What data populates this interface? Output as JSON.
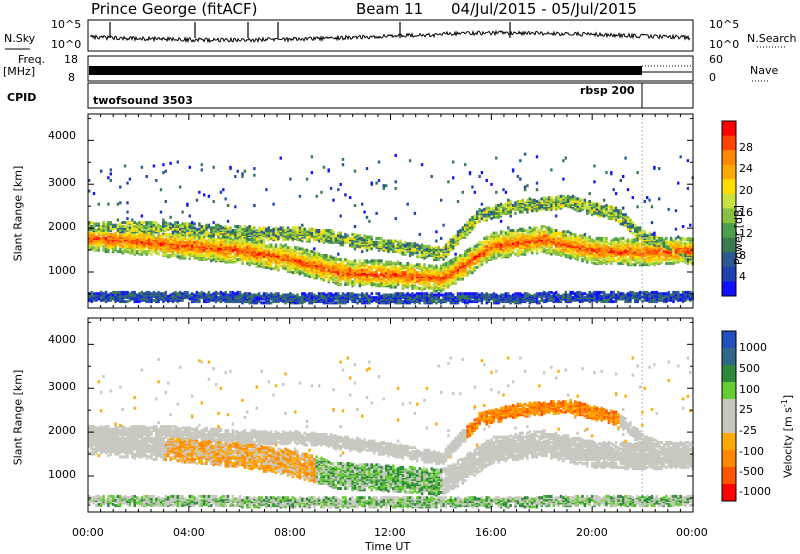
{
  "header": {
    "station": "Prince George (fitACF)",
    "beam": "Beam 11",
    "date_range": "04/Jul/2015 - 05/Jul/2015"
  },
  "noise_panel": {
    "left_label": "N.Sky",
    "right_label": "N.Search",
    "ticks_left": [
      "10^5",
      "10^0"
    ],
    "ticks_right": [
      "10^5",
      "10^0"
    ]
  },
  "freq_panel": {
    "left_label_1": "Freq.",
    "left_label_2": "[MHz]",
    "ticks_left": [
      "18",
      "8"
    ],
    "ticks_right": [
      "60",
      "0"
    ],
    "right_label": "Nave"
  },
  "cpid_panel": {
    "label": "CPID",
    "segments": [
      {
        "name": "twofsound 3503",
        "start_hour": 0,
        "end_hour": 21.95
      },
      {
        "name": "rbsp 200",
        "start_hour": 21.95,
        "end_hour": 24
      }
    ]
  },
  "power_colorbar": {
    "title": "Power [dB]",
    "ticks": [
      "28",
      "24",
      "20",
      "16",
      "12",
      "8",
      "4"
    ],
    "colors": [
      "#ff0000",
      "#ff4400",
      "#ff8800",
      "#ffaa00",
      "#ffdd00",
      "#c8e040",
      "#88c040",
      "#4ca04c",
      "#3a7a50",
      "#2a5a90",
      "#2040b0",
      "#1010ff"
    ]
  },
  "velocity_colorbar": {
    "title": "Velocity [m s",
    "title_sup": "-1",
    "title_end": "]",
    "ticks": [
      "1000",
      "500",
      "100",
      "25",
      "-25",
      "-100",
      "-500",
      "-1000"
    ],
    "colors": [
      "#2050c0",
      "#306888",
      "#2d8a3a",
      "#66cc33",
      "#c8c8c0",
      "#c8c8c0",
      "#ffaa00",
      "#ff8800",
      "#ff5500",
      "#ff0000"
    ]
  },
  "chart_data": {
    "type": "heatmap",
    "panels": [
      {
        "name": "power",
        "ylabel": "Slant Range [km]",
        "yticks": [
          "4000",
          "3000",
          "2000",
          "1000"
        ],
        "ylim": [
          180,
          4600
        ]
      },
      {
        "name": "velocity",
        "ylabel": "Slant Range [km]",
        "yticks": [
          "4000",
          "3000",
          "2000",
          "1000"
        ],
        "ylim": [
          180,
          4600
        ]
      }
    ],
    "xlabel": "Time UT",
    "xticks": [
      "00:00",
      "04:00",
      "08:00",
      "12:00",
      "16:00",
      "20:00",
      "00:00"
    ],
    "xlim_hours": [
      0,
      24
    ],
    "bands": [
      {
        "name": "main-echo-band",
        "points": [
          [
            0,
            1800
          ],
          [
            3,
            1650
          ],
          [
            6,
            1500
          ],
          [
            8,
            1300
          ],
          [
            10,
            1000
          ],
          [
            12,
            950
          ],
          [
            14,
            850
          ],
          [
            15,
            1200
          ],
          [
            16,
            1600
          ],
          [
            18,
            1750
          ],
          [
            20,
            1500
          ],
          [
            22,
            1450
          ],
          [
            24,
            1500
          ]
        ],
        "halfwidth": 300
      },
      {
        "name": "upper-band",
        "points": [
          [
            0,
            2000
          ],
          [
            3,
            2000
          ],
          [
            6,
            1900
          ],
          [
            9,
            1850
          ],
          [
            12,
            1600
          ],
          [
            14,
            1400
          ],
          [
            15.5,
            2300
          ],
          [
            17,
            2500
          ],
          [
            19,
            2600
          ],
          [
            21,
            2300
          ],
          [
            22,
            1800
          ],
          [
            24,
            1300
          ]
        ],
        "halfwidth": 150
      },
      {
        "name": "near-range",
        "points": [
          [
            0,
            450
          ],
          [
            6,
            420
          ],
          [
            12,
            400
          ],
          [
            18,
            420
          ],
          [
            24,
            450
          ]
        ],
        "halfwidth": 120
      }
    ]
  }
}
